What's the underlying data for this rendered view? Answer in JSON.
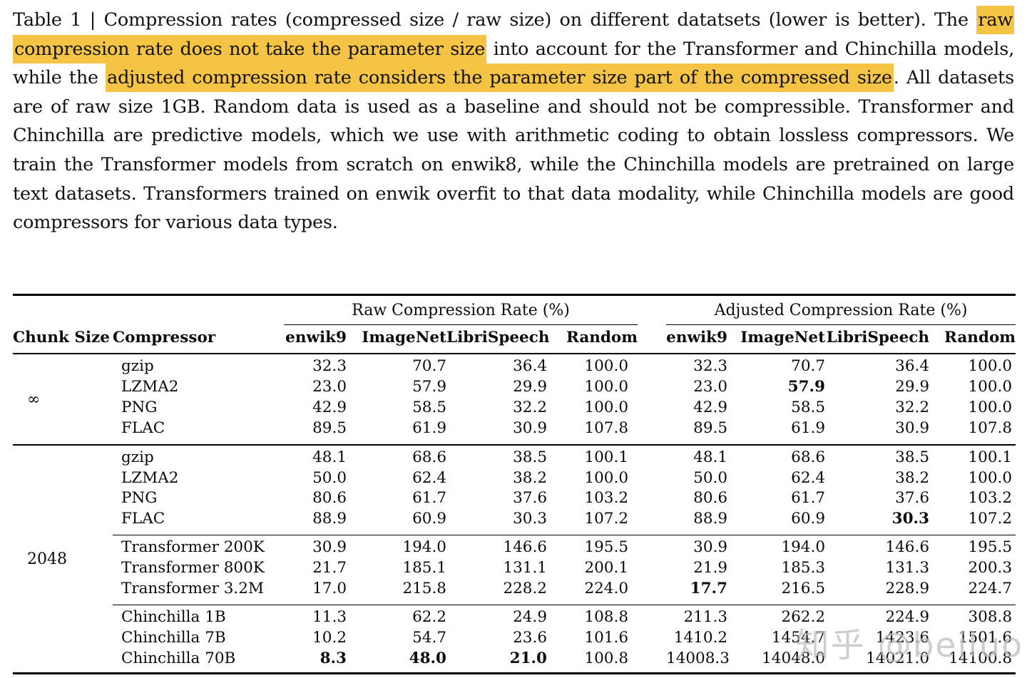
{
  "caption": {
    "segments": [
      {
        "text": "Table 1 | Compression rates (compressed size / raw size) on different datatsets (lower is better). The ",
        "highlight": false
      },
      {
        "text": "raw compression rate does not take the parameter size",
        "highlight": true
      },
      {
        "text": " into account for the Transformer and Chinchilla models, while the ",
        "highlight": false
      },
      {
        "text": "adjusted compression rate considers the parameter size part of the compressed size",
        "highlight": true
      },
      {
        "text": ". All datasets are of raw size 1GB. Random data is used as a baseline and should not be compressible. Transformer and Chinchilla are predictive models, which we use with arithmetic coding to obtain lossless compressors. We train the Transformer models from scratch on enwik8, while the Chinchilla models are pretrained on large text datasets. Transformers trained on enwik overfit to that data modality, while Chinchilla models are good compressors for various data types.",
        "highlight": false
      }
    ]
  },
  "highlight_color": "#F6C445",
  "table": {
    "group_headers": {
      "raw": "Raw Compression Rate (%)",
      "adjusted": "Adjusted Compression Rate (%)"
    },
    "col_headers": {
      "chunk": "Chunk Size",
      "compressor": "Compressor",
      "raw": [
        "enwik9",
        "ImageNet",
        "LibriSpeech",
        "Random"
      ],
      "adjusted": [
        "enwik9",
        "ImageNet",
        "LibriSpeech",
        "Random"
      ]
    },
    "groups": [
      {
        "chunk_size": "∞",
        "rows": [
          {
            "compressor": "gzip",
            "raw": [
              "32.3",
              "70.7",
              "36.4",
              "100.0"
            ],
            "adj": [
              "32.3",
              "70.7",
              "36.4",
              "100.0"
            ]
          },
          {
            "compressor": "LZMA2",
            "raw": [
              "23.0",
              "57.9",
              "29.9",
              "100.0"
            ],
            "adj": [
              "23.0",
              "57.9",
              "29.9",
              "100.0"
            ]
          },
          {
            "compressor": "PNG",
            "raw": [
              "42.9",
              "58.5",
              "32.2",
              "100.0"
            ],
            "adj": [
              "42.9",
              "58.5",
              "32.2",
              "100.0"
            ]
          },
          {
            "compressor": "FLAC",
            "raw": [
              "89.5",
              "61.9",
              "30.9",
              "107.8"
            ],
            "adj": [
              "89.5",
              "61.9",
              "30.9",
              "107.8"
            ]
          }
        ]
      },
      {
        "chunk_size": "2048",
        "rows": [
          {
            "compressor": "gzip",
            "raw": [
              "48.1",
              "68.6",
              "38.5",
              "100.1"
            ],
            "adj": [
              "48.1",
              "68.6",
              "38.5",
              "100.1"
            ]
          },
          {
            "compressor": "LZMA2",
            "raw": [
              "50.0",
              "62.4",
              "38.2",
              "100.0"
            ],
            "adj": [
              "50.0",
              "62.4",
              "38.2",
              "100.0"
            ]
          },
          {
            "compressor": "PNG",
            "raw": [
              "80.6",
              "61.7",
              "37.6",
              "103.2"
            ],
            "adj": [
              "80.6",
              "61.7",
              "37.6",
              "103.2"
            ]
          },
          {
            "compressor": "FLAC",
            "raw": [
              "88.9",
              "60.9",
              "30.3",
              "107.2"
            ],
            "adj": [
              "88.9",
              "60.9",
              "30.3",
              "107.2"
            ]
          },
          {
            "compressor": "Transformer 200K",
            "raw": [
              "30.9",
              "194.0",
              "146.6",
              "195.5"
            ],
            "adj": [
              "30.9",
              "194.0",
              "146.6",
              "195.5"
            ]
          },
          {
            "compressor": "Transformer 800K",
            "raw": [
              "21.7",
              "185.1",
              "131.1",
              "200.1"
            ],
            "adj": [
              "21.9",
              "185.3",
              "131.3",
              "200.3"
            ]
          },
          {
            "compressor": "Transformer 3.2M",
            "raw": [
              "17.0",
              "215.8",
              "228.2",
              "224.0"
            ],
            "adj": [
              "17.7",
              "216.5",
              "228.9",
              "224.7"
            ]
          },
          {
            "compressor": "Chinchilla 1B",
            "raw": [
              "11.3",
              "62.2",
              "24.9",
              "108.8"
            ],
            "adj": [
              "211.3",
              "262.2",
              "224.9",
              "308.8"
            ]
          },
          {
            "compressor": "Chinchilla 7B",
            "raw": [
              "10.2",
              "54.7",
              "23.6",
              "101.6"
            ],
            "adj": [
              "1410.2",
              "1454.7",
              "1423.6",
              "1501.6"
            ]
          },
          {
            "compressor": "Chinchilla 70B",
            "raw": [
              "8.3",
              "48.0",
              "21.0",
              "100.8"
            ],
            "adj": [
              "14008.3",
              "14048.0",
              "14021.0",
              "14100.8"
            ]
          }
        ]
      }
    ]
  },
  "watermark": {
    "text": "知乎 @beiluo"
  }
}
